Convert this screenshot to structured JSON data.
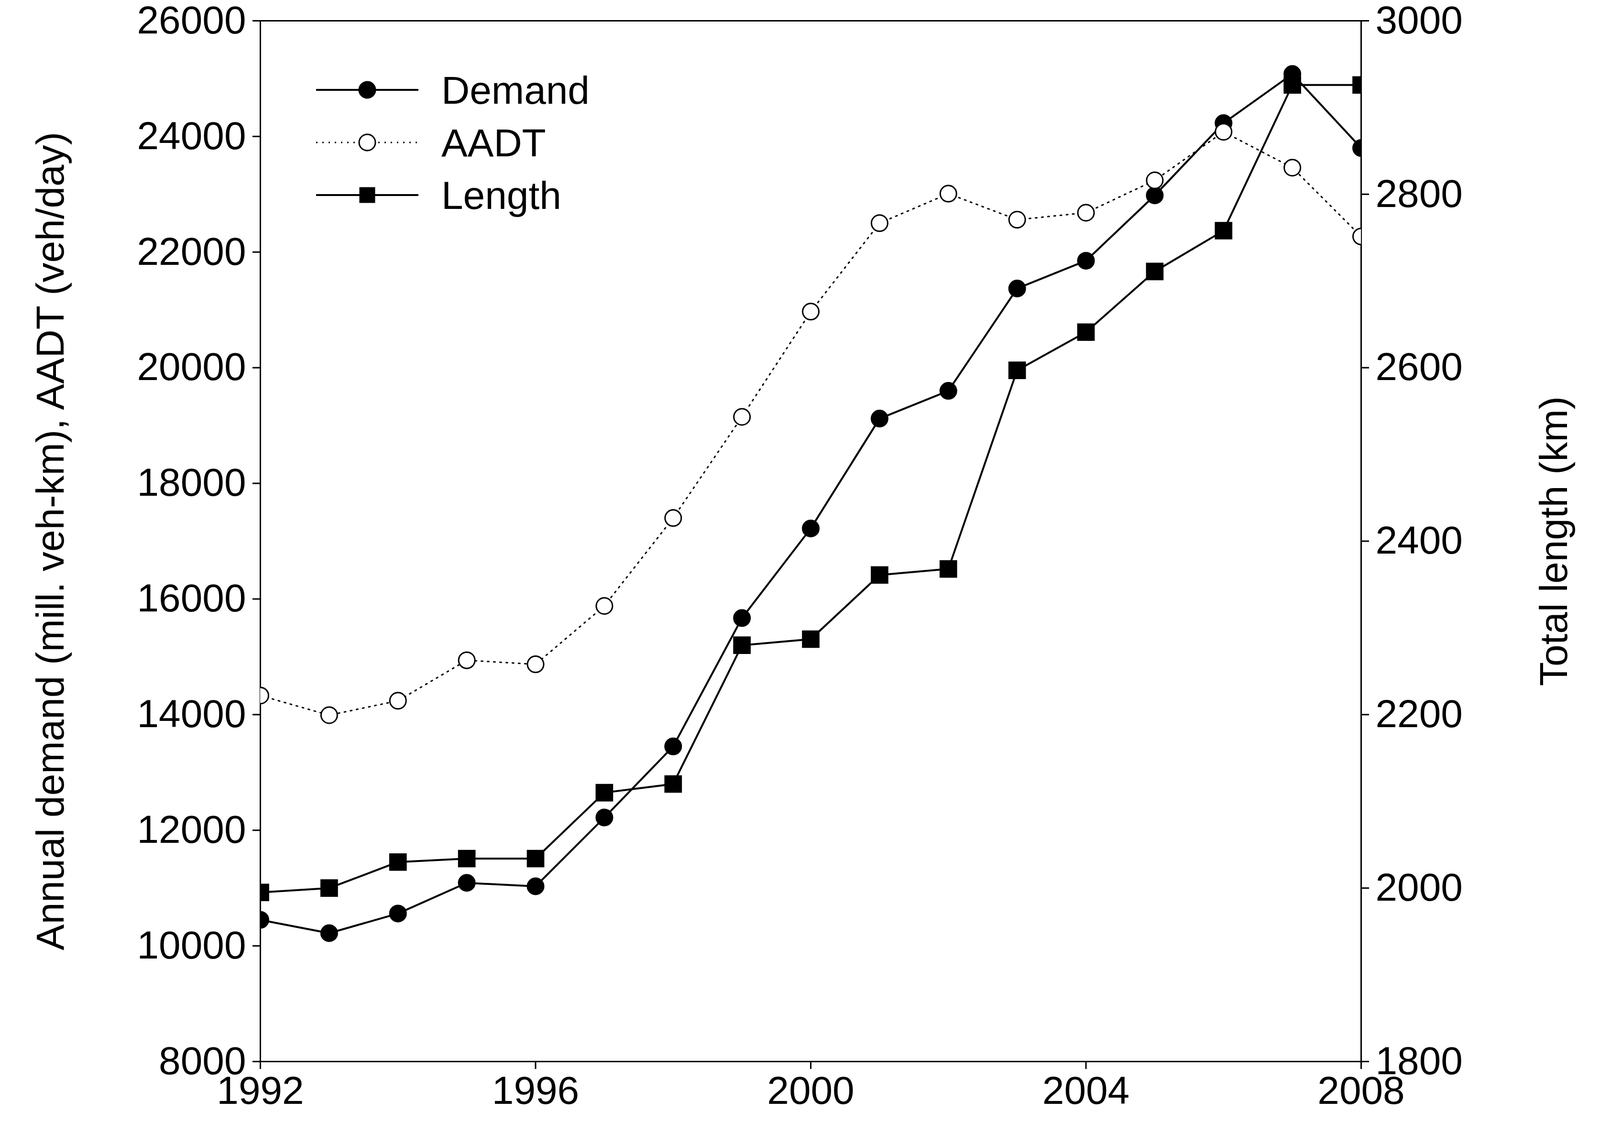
{
  "chart_data": {
    "type": "line",
    "x": [
      1992,
      1993,
      1994,
      1995,
      1996,
      1997,
      1998,
      1999,
      2000,
      2001,
      2002,
      2003,
      2004,
      2005,
      2006,
      2007,
      2008
    ],
    "series": [
      {
        "name": "Demand",
        "color": "#000000",
        "marker": "circle",
        "line_style": "solid",
        "values": [
          10450,
          10220,
          10560,
          11090,
          11030,
          12220,
          13450,
          15670,
          17220,
          19120,
          19600,
          21370,
          21850,
          22980,
          24230,
          25080,
          23800
        ]
      },
      {
        "name": "AADT",
        "color": "#000000",
        "marker": "open_circle",
        "line_style": "dotted",
        "values": [
          14330,
          13990,
          14240,
          14940,
          14870,
          15880,
          17400,
          19150,
          20970,
          22500,
          23010,
          22560,
          22680,
          23240,
          24080,
          23460,
          22270
        ]
      },
      {
        "name": "Length",
        "color": "#000000",
        "marker": "square",
        "line_style": "solid",
        "axis": "y2",
        "values": [
          1995,
          2000,
          2030,
          2034,
          2034,
          2110,
          2120,
          2280,
          2287,
          2361,
          2368,
          2597,
          2641,
          2711,
          2758,
          2926,
          2926
        ]
      }
    ],
    "xlim": [
      1992,
      2008
    ],
    "xticks": [
      1992,
      1996,
      2000,
      2004,
      2008
    ],
    "ylim": [
      8000,
      26000
    ],
    "yticks": [
      8000,
      10000,
      12000,
      14000,
      16000,
      18000,
      20000,
      22000,
      24000,
      26000
    ],
    "y2lim": [
      1800,
      3000
    ],
    "y2ticks": [
      1800,
      2000,
      2200,
      2400,
      2600,
      2800,
      3000
    ],
    "y_label": "Annual demand (mill. veh-km), AADT (veh/day)",
    "y2_label": "Total length (km)",
    "legend": "upper left",
    "grid": false
  }
}
